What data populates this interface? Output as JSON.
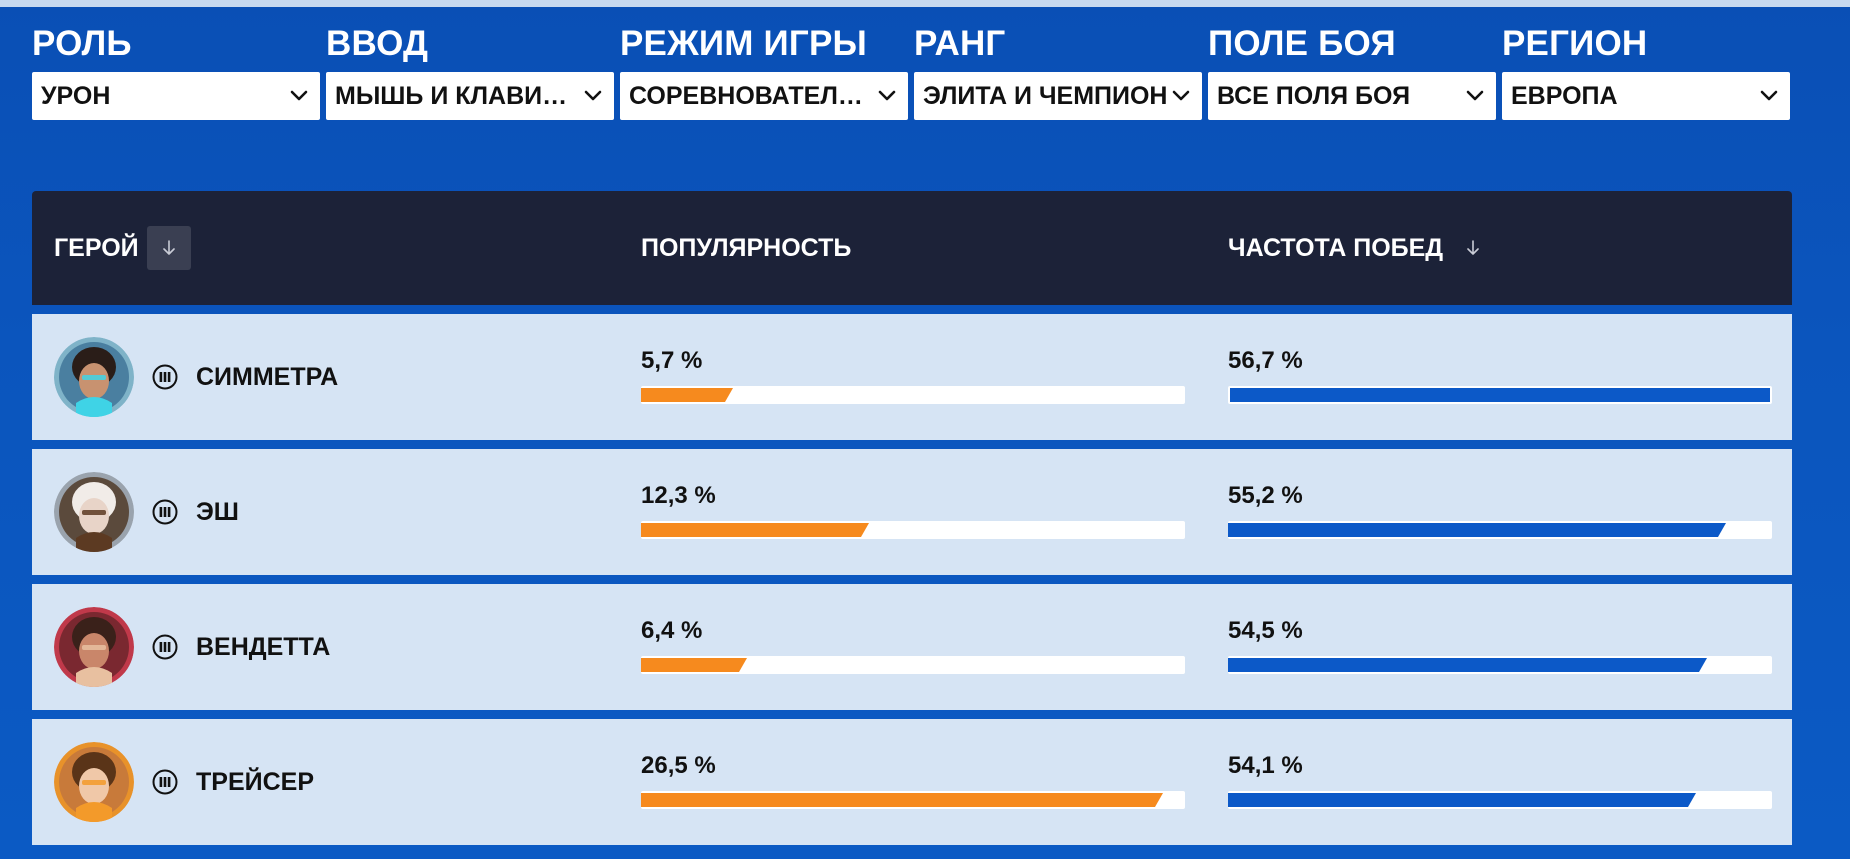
{
  "filters": [
    {
      "label": "РОЛЬ",
      "value": "УРОН"
    },
    {
      "label": "ВВОД",
      "value": "МЫШЬ И КЛАВИАТУРА"
    },
    {
      "label": "РЕЖИМ ИГРЫ",
      "value": "СОРЕВНОВАТЕЛЬНАЯ ИГРА"
    },
    {
      "label": "РАНГ",
      "value": "ЭЛИТА И ЧЕМПИОН"
    },
    {
      "label": "ПОЛЕ БОЯ",
      "value": "ВСЕ ПОЛЯ БОЯ"
    },
    {
      "label": "РЕГИОН",
      "value": "ЕВРОПА"
    }
  ],
  "table": {
    "headers": {
      "hero": "ГЕРОЙ",
      "popularity": "ПОПУЛЯРНОСТЬ",
      "winrate": "ЧАСТОТА ПОБЕД"
    },
    "rows": [
      {
        "name": "СИММЕТРА",
        "popularity": "5,7 %",
        "winrate": "56,7 %",
        "pop_fill": 0.17,
        "win_fill": 1.0,
        "avatar_ring": "#7fb3c8",
        "avatar_bg": "#4a7fa0",
        "skin": "#c89270",
        "hair": "#2a1d18",
        "accent": "#3fd3e6"
      },
      {
        "name": "ЭШ",
        "popularity": "12,3 %",
        "winrate": "55,2 %",
        "pop_fill": 0.42,
        "win_fill": 0.915,
        "avatar_ring": "#9aa3ad",
        "avatar_bg": "#5b4a3c",
        "skin": "#e8d4c8",
        "hair": "#f1ece8",
        "accent": "#5c3a22"
      },
      {
        "name": "ВЕНДЕТТА",
        "popularity": "6,4 %",
        "winrate": "54,5 %",
        "pop_fill": 0.195,
        "win_fill": 0.88,
        "avatar_ring": "#c0394a",
        "avatar_bg": "#7a2830",
        "skin": "#c9866a",
        "hair": "#3a211a",
        "accent": "#e8c0a0"
      },
      {
        "name": "ТРЕЙСЕР",
        "popularity": "26,5 %",
        "winrate": "54,1 %",
        "pop_fill": 0.96,
        "win_fill": 0.86,
        "avatar_ring": "#e8922a",
        "avatar_bg": "#c87a3a",
        "skin": "#f0c8a8",
        "hair": "#5a3418",
        "accent": "#f39a2a"
      }
    ]
  },
  "colors": {
    "background": "#0b55bd",
    "header_bg": "#1c2238",
    "row_bg": "#d6e4f4",
    "popularity_bar": "#f68a1e",
    "winrate_bar": "#0c59c8"
  },
  "icons": {
    "filter_chevron": "chevron-down-icon",
    "sort": "arrow-down-icon",
    "role": "damage-role-icon"
  }
}
